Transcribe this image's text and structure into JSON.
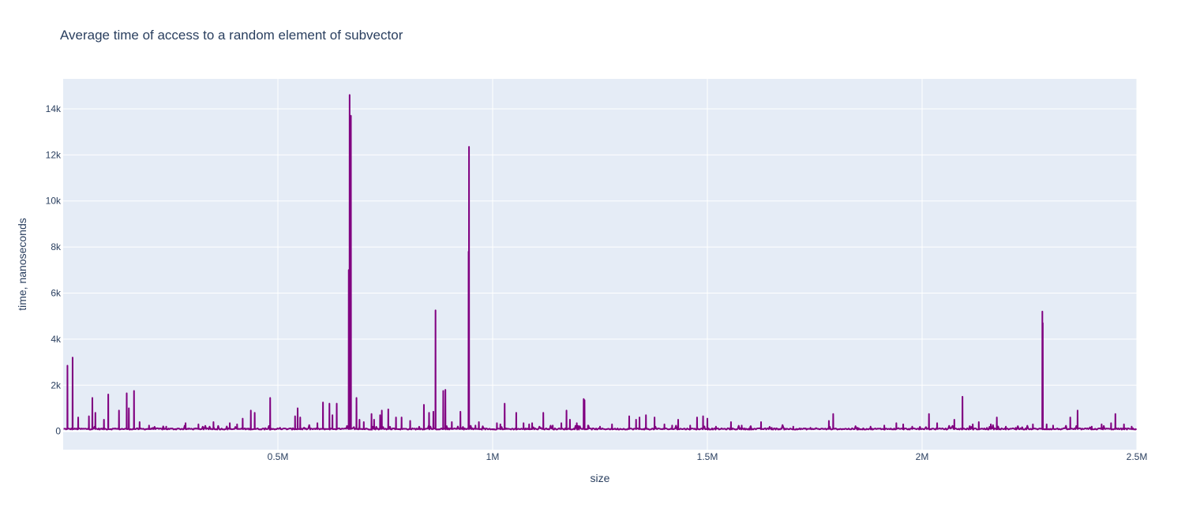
{
  "chart_data": {
    "type": "line",
    "title": "Average time of access to a random element of subvector",
    "xlabel": "size",
    "ylabel": "time, nanoseconds",
    "xlim": [
      0,
      2500000
    ],
    "ylim": [
      -800,
      15300
    ],
    "grid": true,
    "colors": {
      "line": "#800080",
      "plot_bg": "#e5ecf6",
      "grid": "#ffffff",
      "text": "#2a3f5f"
    },
    "x_ticks": [
      {
        "value": 500000,
        "label": "0.5M"
      },
      {
        "value": 1000000,
        "label": "1M"
      },
      {
        "value": 1500000,
        "label": "1.5M"
      },
      {
        "value": 2000000,
        "label": "2M"
      },
      {
        "value": 2500000,
        "label": "2.5M"
      }
    ],
    "y_ticks": [
      {
        "value": 0,
        "label": "0"
      },
      {
        "value": 2000,
        "label": "2k"
      },
      {
        "value": 4000,
        "label": "4k"
      },
      {
        "value": 6000,
        "label": "6k"
      },
      {
        "value": 8000,
        "label": "8k"
      },
      {
        "value": 10000,
        "label": "10k"
      },
      {
        "value": 12000,
        "label": "12k"
      },
      {
        "value": 14000,
        "label": "14k"
      }
    ],
    "baseline": 100,
    "spikes": [
      [
        10000,
        2850
      ],
      [
        22000,
        3200
      ],
      [
        35000,
        600
      ],
      [
        60000,
        650
      ],
      [
        68000,
        1450
      ],
      [
        75000,
        800
      ],
      [
        95000,
        500
      ],
      [
        105000,
        1600
      ],
      [
        130000,
        900
      ],
      [
        148000,
        1650
      ],
      [
        153000,
        1000
      ],
      [
        165000,
        1750
      ],
      [
        178000,
        400
      ],
      [
        200000,
        250
      ],
      [
        240000,
        200
      ],
      [
        285000,
        350
      ],
      [
        315000,
        300
      ],
      [
        350000,
        400
      ],
      [
        388000,
        350
      ],
      [
        405000,
        300
      ],
      [
        418000,
        550
      ],
      [
        437000,
        900
      ],
      [
        446000,
        800
      ],
      [
        482000,
        1450
      ],
      [
        540000,
        650
      ],
      [
        546000,
        1000
      ],
      [
        552000,
        600
      ],
      [
        592000,
        350
      ],
      [
        605000,
        1250
      ],
      [
        620000,
        1200
      ],
      [
        627000,
        700
      ],
      [
        637000,
        1200
      ],
      [
        665000,
        7000
      ],
      [
        667000,
        14600
      ],
      [
        670000,
        13700
      ],
      [
        683000,
        1450
      ],
      [
        690000,
        500
      ],
      [
        700000,
        400
      ],
      [
        718000,
        750
      ],
      [
        724000,
        500
      ],
      [
        738000,
        700
      ],
      [
        742000,
        900
      ],
      [
        757000,
        950
      ],
      [
        775000,
        600
      ],
      [
        788000,
        600
      ],
      [
        808000,
        450
      ],
      [
        840000,
        1150
      ],
      [
        852000,
        800
      ],
      [
        862000,
        850
      ],
      [
        867000,
        5250
      ],
      [
        885000,
        1750
      ],
      [
        890000,
        1800
      ],
      [
        905000,
        400
      ],
      [
        925000,
        850
      ],
      [
        944000,
        7800
      ],
      [
        945000,
        12350
      ],
      [
        960000,
        250
      ],
      [
        968000,
        400
      ],
      [
        1010000,
        350
      ],
      [
        1018000,
        300
      ],
      [
        1028000,
        1200
      ],
      [
        1055000,
        800
      ],
      [
        1072000,
        350
      ],
      [
        1085000,
        300
      ],
      [
        1092000,
        350
      ],
      [
        1118000,
        800
      ],
      [
        1140000,
        250
      ],
      [
        1160000,
        350
      ],
      [
        1172000,
        900
      ],
      [
        1180000,
        500
      ],
      [
        1196000,
        350
      ],
      [
        1212000,
        1400
      ],
      [
        1214000,
        1350
      ],
      [
        1222000,
        250
      ],
      [
        1250000,
        200
      ],
      [
        1278000,
        300
      ],
      [
        1318000,
        650
      ],
      [
        1334000,
        500
      ],
      [
        1342000,
        600
      ],
      [
        1357000,
        700
      ],
      [
        1377000,
        600
      ],
      [
        1400000,
        300
      ],
      [
        1418000,
        250
      ],
      [
        1432000,
        500
      ],
      [
        1460000,
        250
      ],
      [
        1476000,
        600
      ],
      [
        1490000,
        650
      ],
      [
        1500000,
        550
      ],
      [
        1520000,
        200
      ],
      [
        1555000,
        400
      ],
      [
        1580000,
        250
      ],
      [
        1600000,
        200
      ],
      [
        1625000,
        400
      ],
      [
        1650000,
        150
      ],
      [
        1700000,
        200
      ],
      [
        1740000,
        150
      ],
      [
        1783000,
        450
      ],
      [
        1793000,
        750
      ],
      [
        1850000,
        150
      ],
      [
        1880000,
        200
      ],
      [
        1912000,
        250
      ],
      [
        1940000,
        350
      ],
      [
        1956000,
        300
      ],
      [
        1977000,
        200
      ],
      [
        2016000,
        750
      ],
      [
        2035000,
        350
      ],
      [
        2075000,
        500
      ],
      [
        2094000,
        1500
      ],
      [
        2118000,
        300
      ],
      [
        2132000,
        400
      ],
      [
        2160000,
        300
      ],
      [
        2174000,
        600
      ],
      [
        2195000,
        200
      ],
      [
        2218000,
        150
      ],
      [
        2258000,
        300
      ],
      [
        2280000,
        5200
      ],
      [
        2281000,
        4700
      ],
      [
        2290000,
        300
      ],
      [
        2305000,
        250
      ],
      [
        2345000,
        600
      ],
      [
        2362000,
        900
      ],
      [
        2395000,
        200
      ],
      [
        2418000,
        300
      ],
      [
        2440000,
        350
      ],
      [
        2450000,
        750
      ],
      [
        2470000,
        300
      ],
      [
        2488000,
        200
      ]
    ]
  }
}
